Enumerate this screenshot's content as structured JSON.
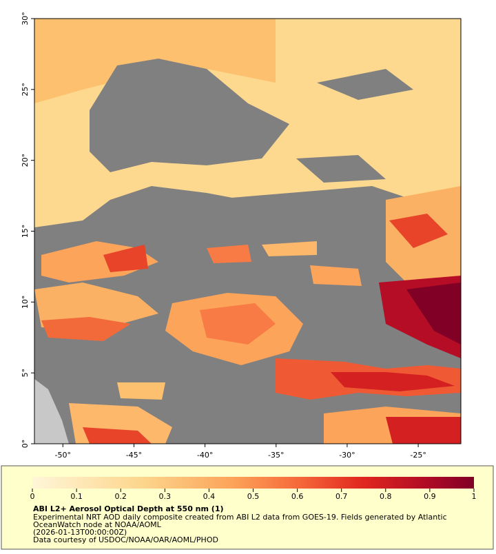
{
  "map": {
    "lonlim": [
      -52,
      -22
    ],
    "latlim": [
      0,
      30
    ],
    "lon_ticks": [
      {
        "value": -50,
        "label": "-50°"
      },
      {
        "value": -45,
        "label": "-45°"
      },
      {
        "value": -40,
        "label": "-40°"
      },
      {
        "value": -35,
        "label": "-35°"
      },
      {
        "value": -30,
        "label": "-30°"
      },
      {
        "value": -25,
        "label": "-25°"
      }
    ],
    "lat_ticks": [
      {
        "value": 0,
        "label": "0°"
      },
      {
        "value": 5,
        "label": "5°"
      },
      {
        "value": 10,
        "label": "10°"
      },
      {
        "value": 15,
        "label": "15°"
      },
      {
        "value": 20,
        "label": "20°"
      },
      {
        "value": 25,
        "label": "25°"
      },
      {
        "value": 30,
        "label": "30°"
      }
    ]
  },
  "colorbar": {
    "lim": [
      0,
      1
    ],
    "ticks": [
      0,
      0.1,
      0.2,
      0.3,
      0.4,
      0.5,
      0.6,
      0.7,
      0.8,
      0.9,
      1
    ]
  },
  "caption": {
    "title": "ABI L2+ Aerosol Optical Depth at 550 nm (1)",
    "lines": [
      "Experimental NRT AOD daily composite created from ABI L2 data from GOES-19. Fields generated by Atlantic",
      "OceanWatch node at NOAA/AOML",
      "(2026-01-13T00:00:00Z)",
      "Data courtesy of USDOC/NOAA/OAR/AOML/PHOD"
    ]
  }
}
